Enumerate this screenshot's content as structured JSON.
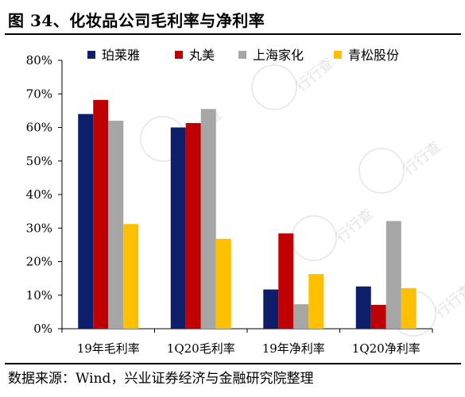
{
  "figure": {
    "title": "图 34、化妆品公司毛利率与净利率",
    "source": "数据来源：Wind，兴业证券经济与金融研究院整理"
  },
  "watermark": {
    "text": "行行查"
  },
  "chart_data": {
    "type": "bar",
    "categories": [
      "19年毛利率",
      "1Q20毛利率",
      "19年净利率",
      "1Q20净利率"
    ],
    "series": [
      {
        "name": "珀莱雅",
        "color": "#0d1f6b",
        "values": [
          64,
          60,
          11.7,
          12.6
        ]
      },
      {
        "name": "丸美",
        "color": "#c00000",
        "values": [
          68.2,
          61.3,
          28.4,
          7.1
        ]
      },
      {
        "name": "上海家化",
        "color": "#a6a6a6",
        "values": [
          62,
          65.5,
          7.3,
          32.1
        ]
      },
      {
        "name": "青松股份",
        "color": "#ffc000",
        "values": [
          31.2,
          26.8,
          16.3,
          12.1
        ]
      }
    ],
    "yticks": [
      "0%",
      "10%",
      "20%",
      "30%",
      "40%",
      "50%",
      "60%",
      "70%",
      "80%"
    ],
    "ylim": [
      0,
      80
    ],
    "legend_position": "top",
    "grid": false
  }
}
